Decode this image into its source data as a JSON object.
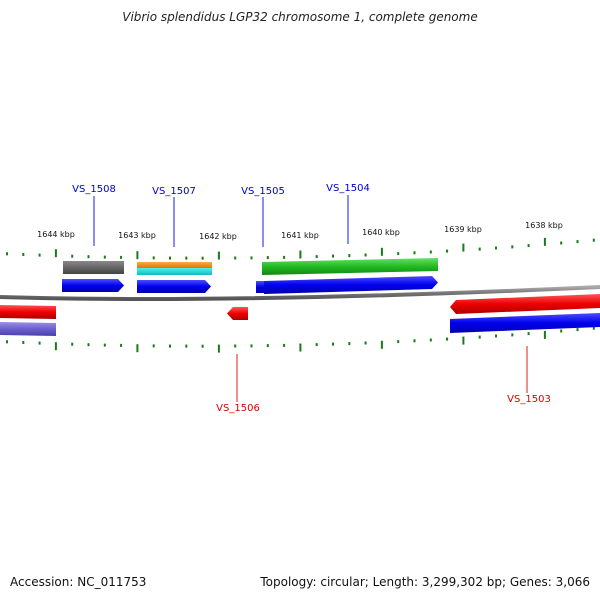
{
  "title": "Vibrio splendidus LGP32 chromosome 1, complete genome",
  "footer": {
    "accession": "Accession: NC_011753",
    "summary": "Topology: circular; Length: 3,299,302 bp; Genes: 3,066"
  },
  "colors": {
    "forward_label": "#0000cc",
    "reverse_label": "#dd0000",
    "backbone": "#888888",
    "tick": "#1a7a1a"
  },
  "scale_ticks": [
    "1644 kbp",
    "1643 kbp",
    "1642 kbp",
    "1641 kbp",
    "1640 kbp",
    "1639 kbp",
    "1638 kbp"
  ],
  "gene_labels": {
    "top": [
      "VS_1508",
      "VS_1507",
      "VS_1505",
      "VS_1504"
    ],
    "bottom": [
      "VS_1506",
      "VS_1503"
    ]
  }
}
